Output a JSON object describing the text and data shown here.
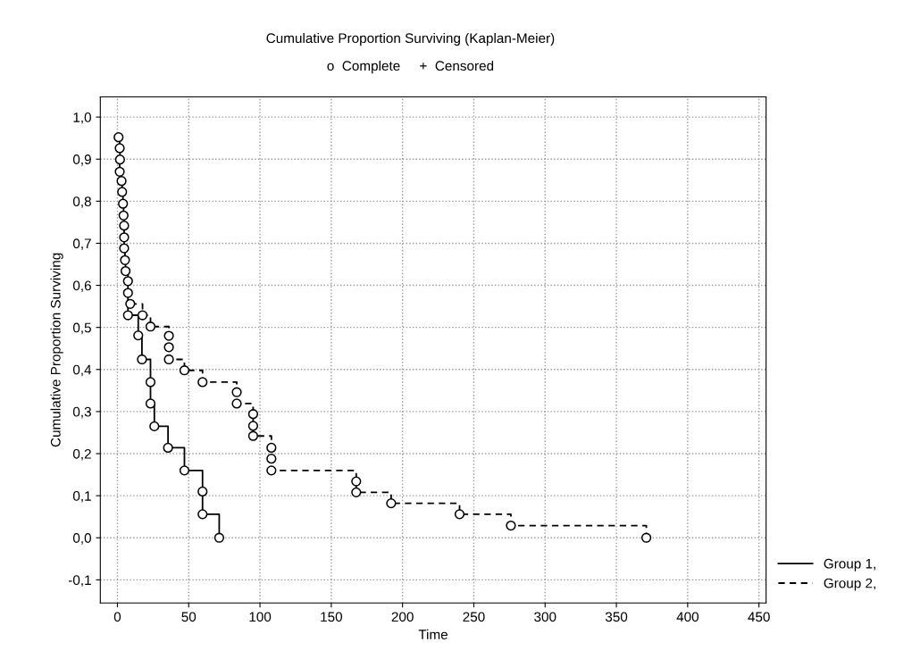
{
  "chart_data": {
    "type": "step",
    "title": "Cumulative Proportion Surviving (Kaplan-Meier)",
    "subtitle": "o  Complete     +  Censored",
    "xlabel": "Time",
    "ylabel": "Cumulative Proportion Surviving",
    "series": [
      {
        "name": "Group 1,",
        "color": "#000000",
        "line_style": "solid",
        "x": [
          0.8,
          1.6,
          1.8,
          1.6,
          2.9,
          3.3,
          3.9,
          4.3,
          4.7,
          4.7,
          4.7,
          5.3,
          5.7,
          7.4,
          7.4,
          7.4,
          14.6,
          17.2,
          23.2,
          23.2,
          25.9,
          35.5,
          47,
          59.7,
          59.7,
          71.4
        ],
        "values": [
          0.952,
          0.926,
          0.899,
          0.87,
          0.848,
          0.822,
          0.794,
          0.766,
          0.742,
          0.714,
          0.688,
          0.66,
          0.634,
          0.61,
          0.582,
          0.529,
          0.481,
          0.424,
          0.37,
          0.319,
          0.265,
          0.214,
          0.16,
          0.11,
          0.056,
          0.0
        ]
      },
      {
        "name": "Group 2,",
        "color": "#000000",
        "line_style": "dashed",
        "x": [
          9.0,
          17.6,
          23.2,
          36.1,
          36.1,
          36.1,
          47,
          59.7,
          83.7,
          83.7,
          95.2,
          95.2,
          95.2,
          108,
          108,
          108,
          167.5,
          167.5,
          192,
          240,
          276,
          371
        ],
        "values": [
          0.556,
          0.529,
          0.502,
          0.48,
          0.453,
          0.424,
          0.398,
          0.37,
          0.346,
          0.319,
          0.294,
          0.266,
          0.242,
          0.214,
          0.188,
          0.16,
          0.134,
          0.108,
          0.082,
          0.056,
          0.029,
          0.0
        ]
      }
    ],
    "xlim": [
      -12,
      455
    ],
    "xticks": [
      0,
      50,
      100,
      150,
      200,
      250,
      300,
      350,
      400,
      450
    ],
    "ylim": [
      -0.155,
      1.048
    ],
    "yticks": [
      {
        "value": -0.1,
        "label": "-0,1"
      },
      {
        "value": 0.0,
        "label": "0,0"
      },
      {
        "value": 0.1,
        "label": "0,1"
      },
      {
        "value": 0.2,
        "label": "0,2"
      },
      {
        "value": 0.3,
        "label": "0,3"
      },
      {
        "value": 0.4,
        "label": "0,4"
      },
      {
        "value": 0.5,
        "label": "0,5"
      },
      {
        "value": 0.6,
        "label": "0,6"
      },
      {
        "value": 0.7,
        "label": "0,7"
      },
      {
        "value": 0.8,
        "label": "0,8"
      },
      {
        "value": 0.9,
        "label": "0,9"
      },
      {
        "value": 1.0,
        "label": "1,0"
      }
    ],
    "grid": true,
    "legend": "bottom right",
    "marker": "circle"
  }
}
